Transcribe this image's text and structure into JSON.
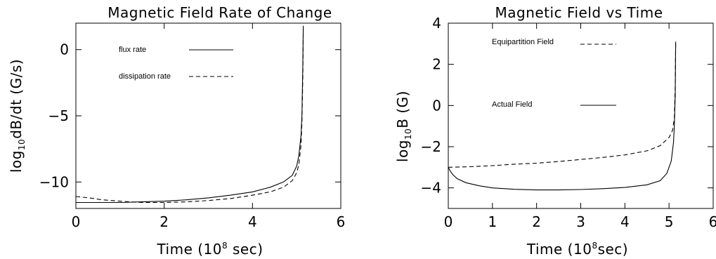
{
  "chart_data": [
    {
      "type": "line",
      "title": "Magnetic Field Rate of Change",
      "xlabel": "Time (10⁸ sec)",
      "ylabel": "log₁₀dB/dt (G/s)",
      "xlim": [
        0,
        6
      ],
      "ylim": [
        -12,
        2
      ],
      "x_ticks": [
        "0",
        "2",
        "4",
        "6"
      ],
      "y_ticks": [
        "-10",
        "-5",
        "0"
      ],
      "series": [
        {
          "name": "flux rate",
          "style": "solid",
          "x": [
            0.0,
            0.5,
            1.0,
            1.5,
            2.0,
            2.5,
            3.0,
            3.5,
            4.0,
            4.4,
            4.7,
            4.9,
            5.0,
            5.05,
            5.1,
            5.12,
            5.14,
            5.15
          ],
          "y": [
            -11.55,
            -11.55,
            -11.55,
            -11.5,
            -11.45,
            -11.35,
            -11.2,
            -11.0,
            -10.75,
            -10.4,
            -10.0,
            -9.5,
            -8.8,
            -8.0,
            -6.5,
            -5.0,
            -1.0,
            1.8
          ]
        },
        {
          "name": "dissipation rate",
          "style": "dashed",
          "x": [
            0.0,
            0.3,
            0.6,
            1.0,
            1.5,
            2.0,
            2.5,
            3.0,
            3.5,
            4.0,
            4.4,
            4.7,
            4.9,
            5.0,
            5.05,
            5.1,
            5.12,
            5.14,
            5.15
          ],
          "y": [
            -11.1,
            -11.2,
            -11.35,
            -11.45,
            -11.55,
            -11.55,
            -11.5,
            -11.4,
            -11.25,
            -11.0,
            -10.75,
            -10.4,
            -9.9,
            -9.3,
            -8.7,
            -7.2,
            -5.5,
            -2.0,
            1.5
          ]
        }
      ]
    },
    {
      "type": "line",
      "title": "Magnetic Field vs Time",
      "xlabel": "Time (10⁸ sec)",
      "ylabel": "log₁₀B (G)",
      "xlim": [
        0,
        6
      ],
      "ylim": [
        -5,
        4
      ],
      "x_ticks": [
        "0",
        "1",
        "2",
        "3",
        "4",
        "5",
        "6"
      ],
      "y_ticks": [
        "-4",
        "-2",
        "0",
        "2",
        "4"
      ],
      "series": [
        {
          "name": "Equipartition Field",
          "style": "dashed",
          "x": [
            0.0,
            0.5,
            1.0,
            1.5,
            2.0,
            2.5,
            3.0,
            3.5,
            4.0,
            4.5,
            4.8,
            5.0,
            5.08,
            5.12,
            5.14,
            5.15
          ],
          "y": [
            -3.0,
            -2.97,
            -2.92,
            -2.85,
            -2.8,
            -2.72,
            -2.62,
            -2.52,
            -2.4,
            -2.2,
            -1.95,
            -1.55,
            -1.2,
            -0.6,
            1.0,
            3.0
          ]
        },
        {
          "name": "Actual Field",
          "style": "solid",
          "x": [
            0.0,
            0.05,
            0.1,
            0.2,
            0.4,
            0.7,
            1.0,
            1.5,
            2.0,
            2.5,
            3.0,
            3.5,
            4.0,
            4.5,
            4.8,
            4.95,
            5.05,
            5.1,
            5.12,
            5.14,
            5.15
          ],
          "y": [
            -3.0,
            -3.2,
            -3.35,
            -3.55,
            -3.75,
            -3.9,
            -4.0,
            -4.07,
            -4.1,
            -4.1,
            -4.08,
            -4.04,
            -3.98,
            -3.85,
            -3.65,
            -3.3,
            -2.7,
            -1.8,
            -1.0,
            0.5,
            3.1
          ]
        }
      ]
    }
  ],
  "legends": [
    {
      "items": [
        "flux rate",
        "dissipation rate"
      ]
    },
    {
      "items": [
        "Equipartition Field",
        "Actual Field"
      ]
    }
  ]
}
